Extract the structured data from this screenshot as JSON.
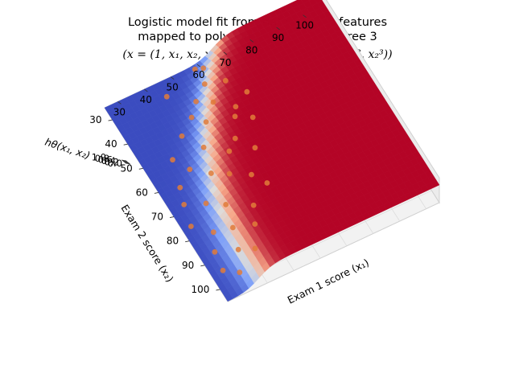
{
  "figure": {
    "title_line1": "Logistic model fit from dataset with features",
    "title_line2": "mapped to polynomial terms of degree 3",
    "title_line3": "(x = (1, x₁, x₂, x₁², x₁x₂, x₂², x₁³, x₁²x₂, x₁x₂², x₂³))"
  },
  "chart_data": {
    "type": "surface",
    "title": "Logistic model fit from dataset with features mapped to polynomial terms of degree 3 (x = (1, x₁, x₂, x₁², x₁x₂, x₂², x₁³, x₁²x₂, x₁x₂², x₂³))",
    "xlabel": "Exam 1 score (x₁)",
    "ylabel": "Exam 2 score (x₂)",
    "zlabel": "hθ(x₁, x₂)",
    "xlim": [
      25,
      105
    ],
    "ylim": [
      25,
      105
    ],
    "zlim": [
      0,
      1
    ],
    "x_ticks": [
      "30",
      "40",
      "50",
      "60",
      "70",
      "80",
      "90",
      "100"
    ],
    "y_ticks": [
      "30",
      "40",
      "50",
      "60",
      "70",
      "80",
      "90",
      "100"
    ],
    "z_ticks": [
      "0.0",
      "0.2",
      "0.4",
      "0.6",
      "0.8",
      "1.0"
    ],
    "colormap": "coolwarm",
    "scatter_color": "#e07b39",
    "decision_boundary": "x1 ≈ 57 − 0.55·(x2 − 28) … curved, surface ≈ 0.5",
    "points": [
      {
        "x1": 58,
        "x2": 27
      },
      {
        "x1": 60,
        "x2": 29
      },
      {
        "x1": 45,
        "x2": 31
      },
      {
        "x1": 57,
        "x2": 35
      },
      {
        "x1": 52,
        "x2": 38
      },
      {
        "x1": 62,
        "x2": 40
      },
      {
        "x1": 48,
        "x2": 42
      },
      {
        "x1": 55,
        "x2": 44
      },
      {
        "x1": 42,
        "x2": 46
      },
      {
        "x1": 66,
        "x2": 47
      },
      {
        "x1": 50,
        "x2": 48
      },
      {
        "x1": 60,
        "x2": 50
      },
      {
        "x1": 35,
        "x2": 52
      },
      {
        "x1": 58,
        "x2": 53
      },
      {
        "x1": 45,
        "x2": 55
      },
      {
        "x1": 63,
        "x2": 56
      },
      {
        "x1": 38,
        "x2": 58
      },
      {
        "x1": 54,
        "x2": 60
      },
      {
        "x1": 32,
        "x2": 62
      },
      {
        "x1": 50,
        "x2": 63
      },
      {
        "x1": 42,
        "x2": 65
      },
      {
        "x1": 58,
        "x2": 66
      },
      {
        "x1": 30,
        "x2": 68
      },
      {
        "x1": 46,
        "x2": 70
      },
      {
        "x1": 36,
        "x2": 72
      },
      {
        "x1": 52,
        "x2": 74
      },
      {
        "x1": 28,
        "x2": 76
      },
      {
        "x1": 40,
        "x2": 78
      },
      {
        "x1": 55,
        "x2": 79
      },
      {
        "x1": 33,
        "x2": 82
      },
      {
        "x1": 47,
        "x2": 84
      },
      {
        "x1": 38,
        "x2": 86
      },
      {
        "x1": 30,
        "x2": 88
      },
      {
        "x1": 44,
        "x2": 90
      },
      {
        "x1": 36,
        "x2": 93
      },
      {
        "x1": 29,
        "x2": 95
      },
      {
        "x1": 40,
        "x2": 97
      },
      {
        "x1": 33,
        "x2": 99
      }
    ]
  }
}
